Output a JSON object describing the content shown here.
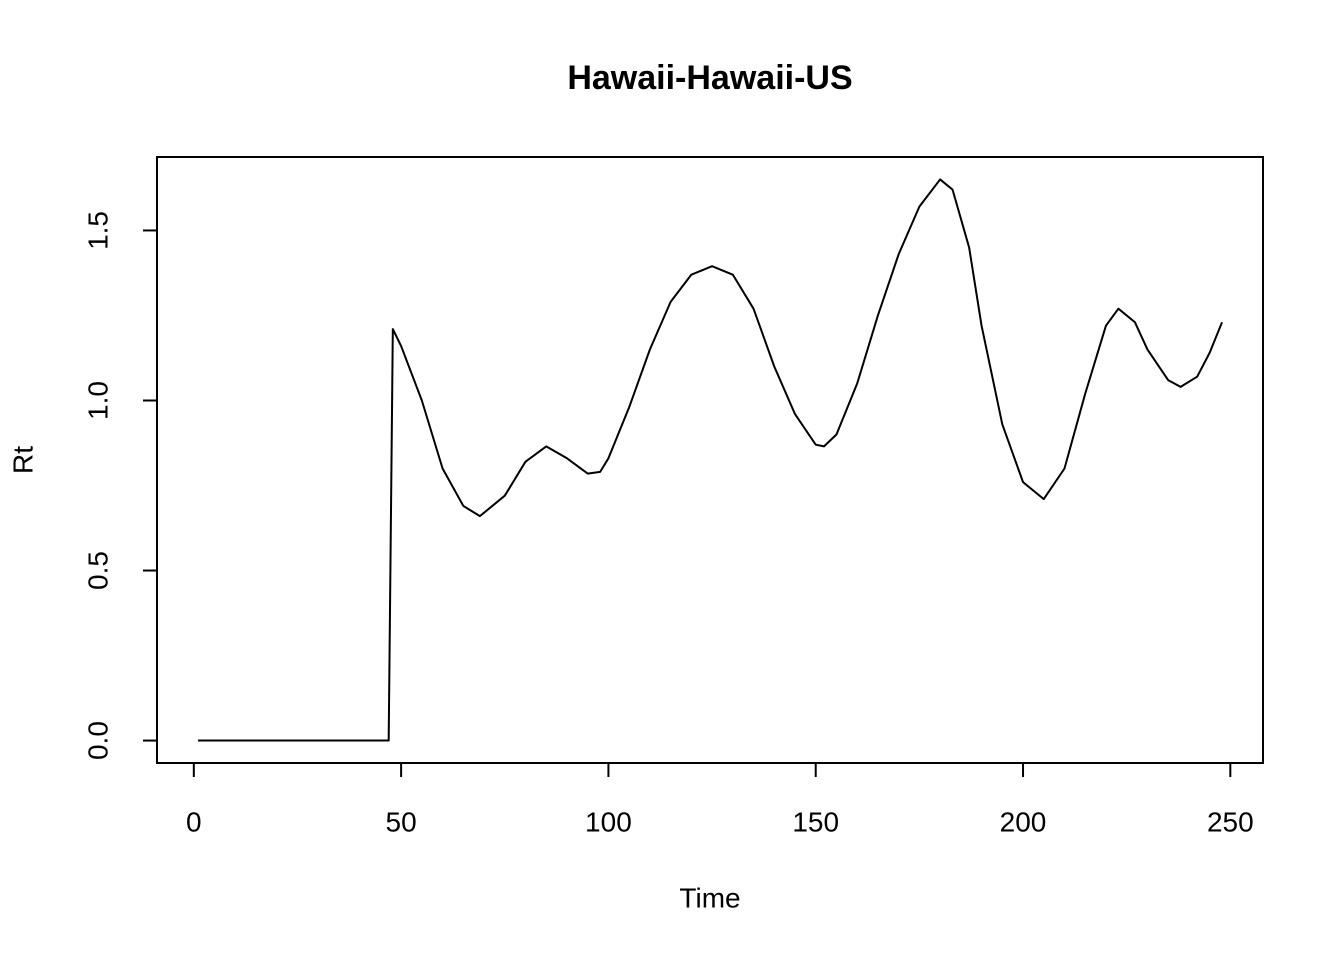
{
  "chart_data": {
    "type": "line",
    "title": "Hawaii-Hawaii-US",
    "xlabel": "Time",
    "ylabel": "Rt",
    "series": [
      {
        "name": "Rt",
        "color": "#000000",
        "x": [
          1,
          47,
          48,
          50,
          55,
          60,
          65,
          69,
          75,
          80,
          85,
          90,
          95,
          98,
          100,
          105,
          110,
          115,
          120,
          125,
          130,
          135,
          140,
          145,
          150,
          152,
          155,
          160,
          165,
          170,
          175,
          180,
          183,
          187,
          190,
          195,
          200,
          205,
          210,
          215,
          220,
          223,
          227,
          230,
          235,
          238,
          242,
          245,
          248
        ],
        "values": [
          0,
          0,
          1.21,
          1.16,
          1.0,
          0.8,
          0.69,
          0.66,
          0.72,
          0.82,
          0.865,
          0.83,
          0.785,
          0.79,
          0.83,
          0.98,
          1.15,
          1.29,
          1.37,
          1.395,
          1.37,
          1.27,
          1.1,
          0.96,
          0.87,
          0.865,
          0.9,
          1.05,
          1.25,
          1.43,
          1.57,
          1.65,
          1.62,
          1.45,
          1.22,
          0.93,
          0.76,
          0.71,
          0.8,
          1.02,
          1.22,
          1.27,
          1.23,
          1.15,
          1.06,
          1.04,
          1.07,
          1.14,
          1.23
        ]
      }
    ],
    "xlim": [
      -8.88,
      257.88
    ],
    "xticks": [
      0,
      50,
      100,
      150,
      200,
      250
    ],
    "ylim": [
      -0.066,
      1.716
    ],
    "yticks": [
      {
        "value": 0,
        "label": "0.0"
      },
      0.5,
      {
        "value": 1,
        "label": "1.0"
      },
      1.5
    ],
    "grid": false
  }
}
